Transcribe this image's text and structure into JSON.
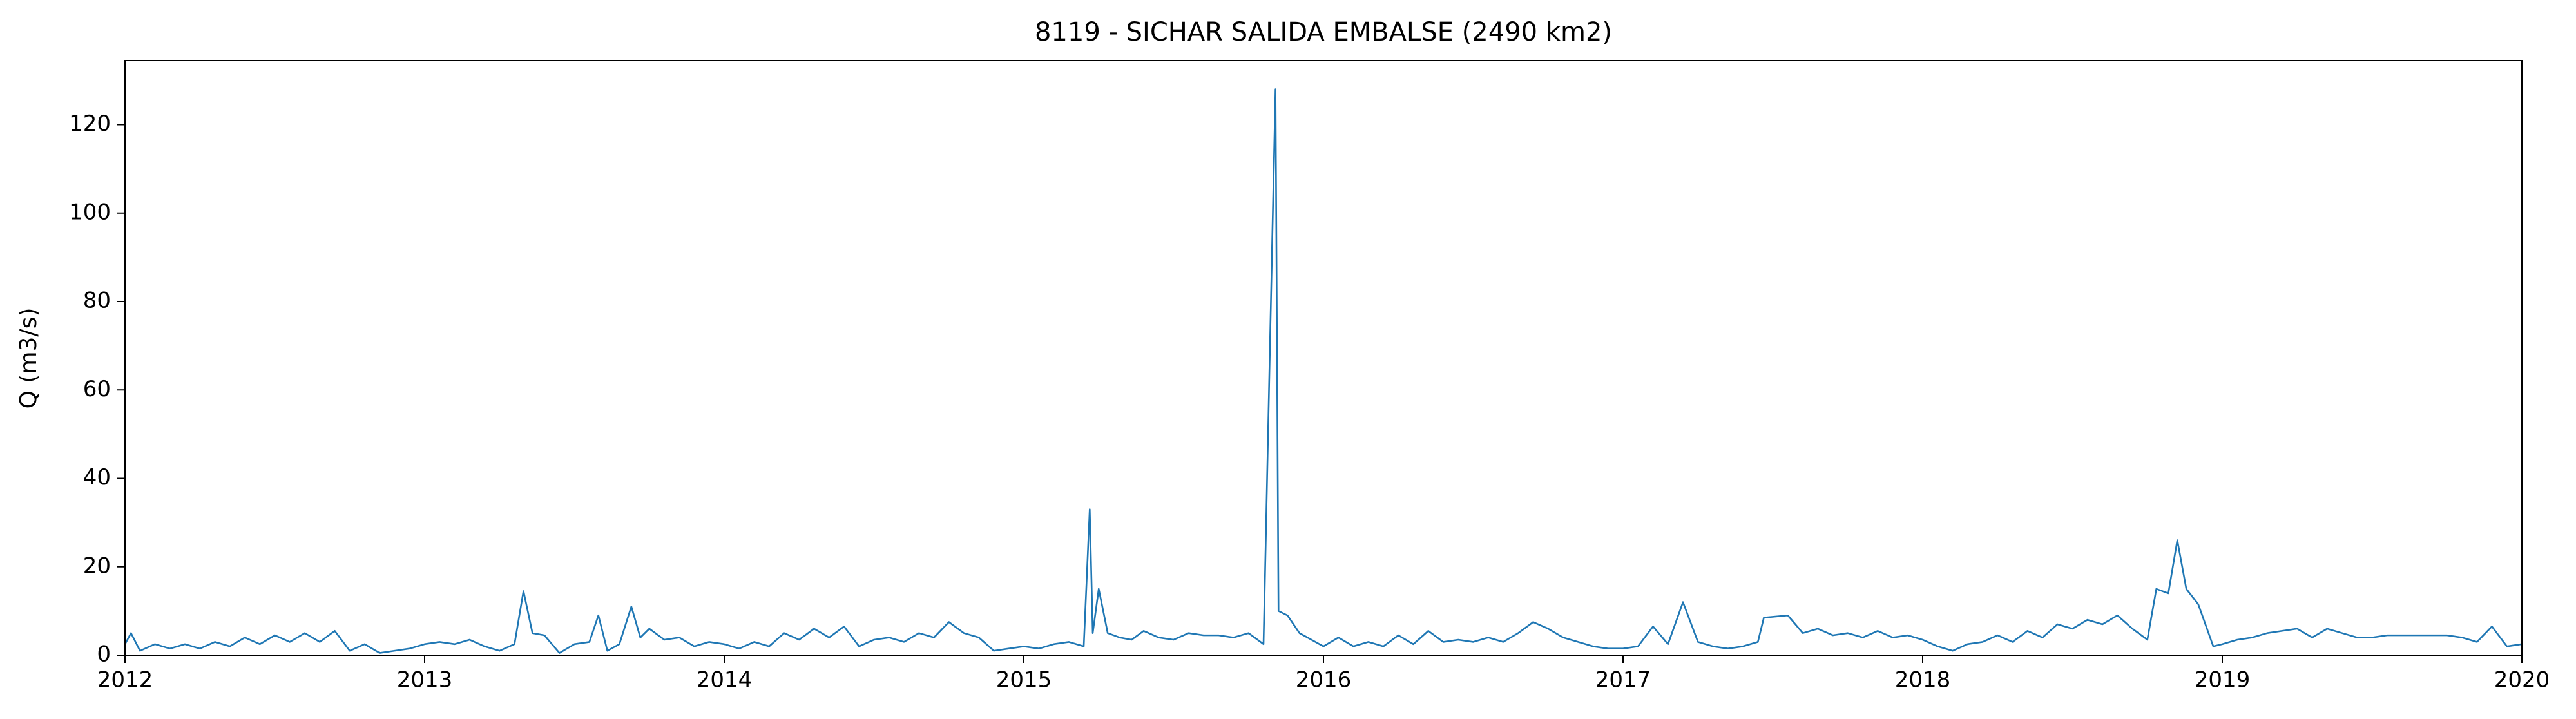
{
  "chart_data": {
    "type": "line",
    "title": "8119 - SICHAR SALIDA EMBALSE (2490 km2)",
    "y_label": "Q (m3/s)",
    "x": [
      2012.0,
      2012.02,
      2012.05,
      2012.1,
      2012.15,
      2012.2,
      2012.25,
      2012.3,
      2012.35,
      2012.4,
      2012.45,
      2012.5,
      2012.55,
      2012.6,
      2012.65,
      2012.7,
      2012.75,
      2012.8,
      2012.85,
      2012.9,
      2012.95,
      2013.0,
      2013.05,
      2013.1,
      2013.15,
      2013.2,
      2013.25,
      2013.3,
      2013.33,
      2013.36,
      2013.4,
      2013.45,
      2013.5,
      2013.55,
      2013.58,
      2013.61,
      2013.65,
      2013.69,
      2013.72,
      2013.75,
      2013.8,
      2013.85,
      2013.9,
      2013.95,
      2014.0,
      2014.05,
      2014.1,
      2014.15,
      2014.2,
      2014.25,
      2014.3,
      2014.35,
      2014.4,
      2014.45,
      2014.5,
      2014.55,
      2014.6,
      2014.65,
      2014.7,
      2014.75,
      2014.8,
      2014.85,
      2014.9,
      2014.95,
      2015.0,
      2015.05,
      2015.1,
      2015.15,
      2015.2,
      2015.22,
      2015.23,
      2015.25,
      2015.28,
      2015.32,
      2015.36,
      2015.4,
      2015.45,
      2015.5,
      2015.55,
      2015.6,
      2015.65,
      2015.7,
      2015.75,
      2015.8,
      2015.84,
      2015.85,
      2015.88,
      2015.92,
      2015.96,
      2016.0,
      2016.05,
      2016.1,
      2016.15,
      2016.2,
      2016.25,
      2016.3,
      2016.35,
      2016.4,
      2016.45,
      2016.5,
      2016.55,
      2016.6,
      2016.65,
      2016.7,
      2016.75,
      2016.8,
      2016.85,
      2016.9,
      2016.95,
      2017.0,
      2017.05,
      2017.1,
      2017.15,
      2017.2,
      2017.25,
      2017.3,
      2017.35,
      2017.4,
      2017.45,
      2017.47,
      2017.55,
      2017.6,
      2017.65,
      2017.7,
      2017.75,
      2017.8,
      2017.85,
      2017.9,
      2017.95,
      2018.0,
      2018.05,
      2018.1,
      2018.15,
      2018.2,
      2018.25,
      2018.3,
      2018.35,
      2018.4,
      2018.45,
      2018.5,
      2018.55,
      2018.6,
      2018.65,
      2018.7,
      2018.75,
      2018.78,
      2018.82,
      2018.85,
      2018.88,
      2018.92,
      2018.97,
      2019.0,
      2019.05,
      2019.1,
      2019.15,
      2019.2,
      2019.25,
      2019.3,
      2019.35,
      2019.4,
      2019.45,
      2019.5,
      2019.55,
      2019.6,
      2019.65,
      2019.7,
      2019.75,
      2019.8,
      2019.85,
      2019.9,
      2019.95,
      2020.0
    ],
    "series": [
      {
        "name": "Q",
        "color": "#1f77b4",
        "values": [
          2.5,
          5,
          1,
          2.5,
          1.5,
          2.5,
          1.5,
          3,
          2,
          4,
          2.5,
          4.5,
          3,
          5,
          3,
          5.5,
          1,
          2.5,
          0.5,
          1,
          1.5,
          2.5,
          3,
          2.5,
          3.5,
          2,
          1,
          2.5,
          14.5,
          5,
          4.5,
          0.5,
          2.5,
          3,
          9,
          1,
          2.5,
          11,
          4,
          6,
          3.5,
          4,
          2,
          3,
          2.5,
          1.5,
          3,
          2,
          5,
          3.5,
          6,
          4,
          6.5,
          2,
          3.5,
          4,
          3,
          5,
          4,
          7.5,
          5,
          4,
          1,
          1.5,
          2,
          1.5,
          2.5,
          3,
          2,
          33,
          5,
          15,
          5,
          4,
          3.5,
          5.5,
          4,
          3.5,
          5,
          4.5,
          4.5,
          4,
          5,
          2.5,
          128,
          10,
          9,
          5,
          3.5,
          2,
          4,
          2,
          3,
          2,
          4.5,
          2.5,
          5.5,
          3,
          3.5,
          3,
          4,
          3,
          5,
          7.5,
          6,
          4,
          3,
          2,
          1.5,
          1.5,
          2,
          6.5,
          2.5,
          12,
          3,
          2,
          1.5,
          2,
          3,
          8.5,
          9,
          5,
          6,
          4.5,
          5,
          4,
          5.5,
          4,
          4.5,
          3.5,
          2,
          1,
          2.5,
          3,
          4.5,
          3,
          5.5,
          4,
          7,
          6,
          8,
          7,
          9,
          6,
          3.5,
          15,
          14,
          26,
          15,
          11.5,
          2,
          2.5,
          3.5,
          4,
          5,
          5.5,
          6,
          4,
          6,
          5,
          4,
          4,
          4.5,
          4.5,
          4.5,
          4.5,
          4.5,
          4,
          3,
          6.5,
          2,
          2.5
        ]
      }
    ],
    "xlim": [
      2012,
      2020
    ],
    "xticks": [
      2012,
      2013,
      2014,
      2015,
      2016,
      2017,
      2018,
      2019,
      2020
    ],
    "ylim": [
      0,
      134.5
    ],
    "yticks": [
      0,
      20,
      40,
      60,
      80,
      100,
      120
    ]
  }
}
